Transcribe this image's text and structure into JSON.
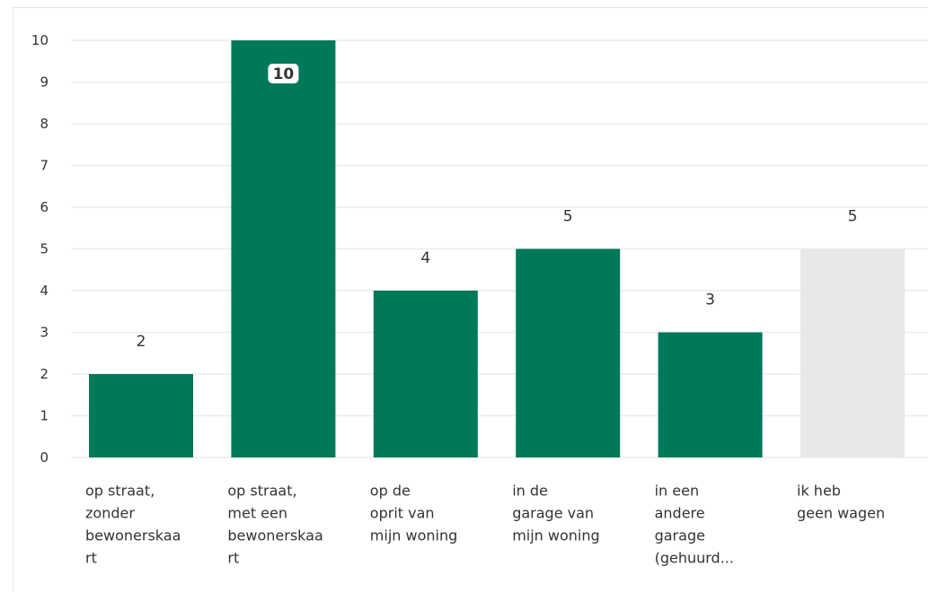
{
  "chart_data": {
    "type": "bar",
    "title": "",
    "xlabel": "",
    "ylabel": "",
    "ylim": [
      0,
      10
    ],
    "yticks": [
      0,
      1,
      2,
      3,
      4,
      5,
      6,
      7,
      8,
      9,
      10
    ],
    "grid": true,
    "categories": [
      [
        "op straat,",
        "zonder",
        "bewonerskaa",
        "rt"
      ],
      [
        "op straat,",
        "met een",
        "bewonerskaa",
        "rt"
      ],
      [
        "op de",
        "oprit van",
        "mijn woning"
      ],
      [
        "in de",
        "garage van",
        "mijn woning"
      ],
      [
        "in een",
        "andere",
        "garage",
        "(gehuurd..."
      ],
      [
        "ik heb",
        "geen wagen"
      ]
    ],
    "values": [
      2,
      10,
      4,
      5,
      3,
      5
    ],
    "value_labels": [
      "2",
      "10",
      "4",
      "5",
      "3",
      "5"
    ],
    "bar_colors": [
      "#00785a",
      "#00785a",
      "#00785a",
      "#00785a",
      "#00785a",
      "#e8e8e6"
    ],
    "gridline_color": "#ececec",
    "text_color": "#333333"
  }
}
